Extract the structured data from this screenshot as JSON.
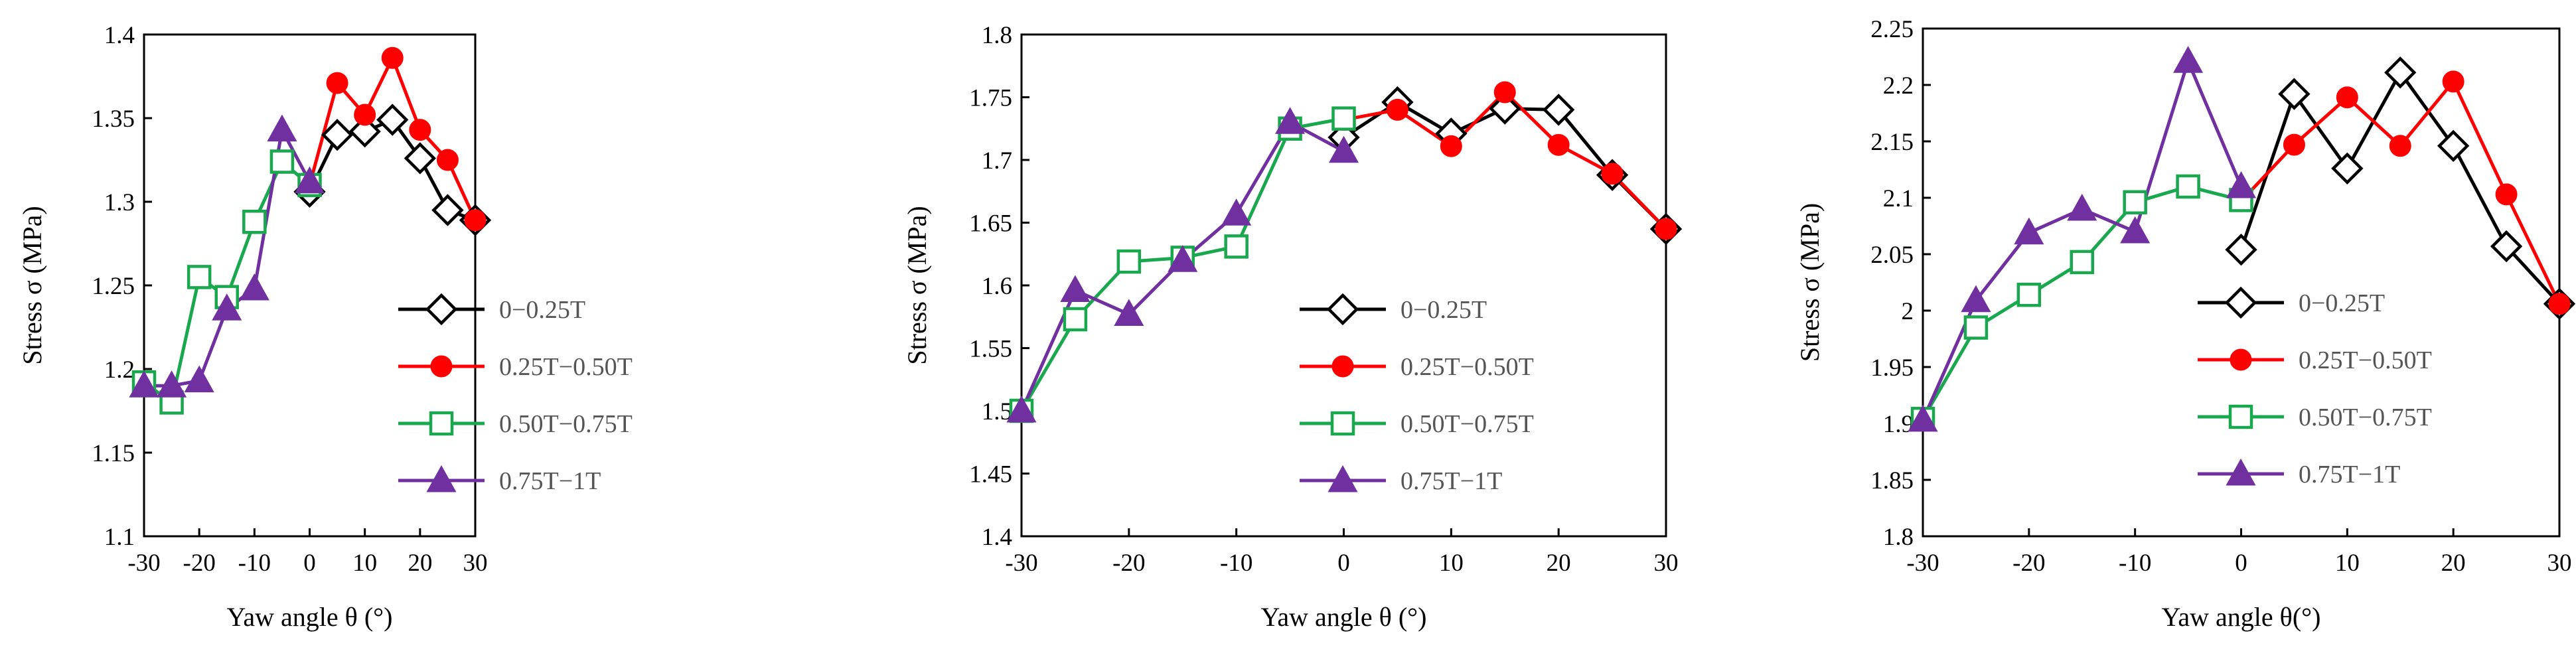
{
  "colors": {
    "s1": "#000000",
    "s2": "#ff0000",
    "s3": "#1aa84f",
    "s4": "#7030a0"
  },
  "chart_data": [
    {
      "type": "line",
      "xlabel": "Yaw angle θ (°)",
      "ylabel": "Stress σ (MPa)",
      "xlim": [
        -30,
        30
      ],
      "ylim": [
        1.1,
        1.4
      ],
      "xticks": [
        -30,
        -20,
        -10,
        0,
        10,
        20,
        30
      ],
      "xtick_labels": [
        "-30",
        "-20",
        "-10",
        "0",
        "10",
        "20",
        "30"
      ],
      "yticks": [
        1.1,
        1.15,
        1.2,
        1.25,
        1.3,
        1.35,
        1.4
      ],
      "ytick_labels": [
        "1.1",
        "1.15",
        "1.2",
        "1.25",
        "1.3",
        "1.35",
        "1.4"
      ],
      "legend_position": "right",
      "series": [
        {
          "name": "0−0.25T",
          "marker": "diamond",
          "x": [
            0,
            5,
            10,
            15,
            20,
            25,
            30
          ],
          "values": [
            1.306,
            1.34,
            1.342,
            1.349,
            1.326,
            1.295,
            1.289
          ]
        },
        {
          "name": "0.25T−0.50T",
          "marker": "circle",
          "x": [
            0,
            5,
            10,
            15,
            20,
            25,
            30
          ],
          "values": [
            1.31,
            1.371,
            1.352,
            1.386,
            1.343,
            1.325,
            1.289
          ]
        },
        {
          "name": "0.50T−0.75T",
          "marker": "square",
          "x": [
            -30,
            -25,
            -20,
            -15,
            -10,
            -5,
            0
          ],
          "values": [
            1.192,
            1.18,
            1.255,
            1.243,
            1.288,
            1.324,
            1.31
          ]
        },
        {
          "name": "0.75T−1T",
          "marker": "triangle",
          "x": [
            -30,
            -25,
            -20,
            -15,
            -10,
            -5,
            0
          ],
          "values": [
            1.19,
            1.19,
            1.193,
            1.236,
            1.248,
            1.343,
            1.312
          ]
        }
      ]
    },
    {
      "type": "line",
      "xlabel": "Yaw angle θ (°)",
      "ylabel": "Stress σ (MPa)",
      "xlim": [
        -30,
        30
      ],
      "ylim": [
        1.4,
        1.8
      ],
      "xticks": [
        -30,
        -20,
        -10,
        0,
        10,
        20,
        30
      ],
      "xtick_labels": [
        "-30",
        "-20",
        "-10",
        "0",
        "10",
        "20",
        "30"
      ],
      "yticks": [
        1.4,
        1.45,
        1.5,
        1.55,
        1.6,
        1.65,
        1.7,
        1.75,
        1.8
      ],
      "ytick_labels": [
        "1.4",
        "1.45",
        "1.5",
        "1.55",
        "1.6",
        "1.65",
        "1.7",
        "1.75",
        "1.8"
      ],
      "legend_position": "right",
      "series": [
        {
          "name": "0−0.25T",
          "marker": "diamond",
          "x": [
            0,
            5,
            10,
            15,
            20,
            25,
            30
          ],
          "values": [
            1.718,
            1.746,
            1.721,
            1.741,
            1.74,
            1.688,
            1.645
          ]
        },
        {
          "name": "0.25T−0.50T",
          "marker": "circle",
          "x": [
            0,
            5,
            10,
            15,
            20,
            25,
            30
          ],
          "values": [
            1.732,
            1.74,
            1.711,
            1.754,
            1.712,
            1.689,
            1.645
          ]
        },
        {
          "name": "0.50T−0.75T",
          "marker": "square",
          "x": [
            -30,
            -25,
            -20,
            -15,
            -10,
            -5,
            0
          ],
          "values": [
            1.5,
            1.573,
            1.619,
            1.622,
            1.631,
            1.725,
            1.733
          ]
        },
        {
          "name": "0.75T−1T",
          "marker": "triangle",
          "x": [
            -30,
            -25,
            -20,
            -15,
            -10,
            -5,
            0
          ],
          "values": [
            1.5,
            1.596,
            1.577,
            1.62,
            1.657,
            1.73,
            1.707
          ]
        }
      ]
    },
    {
      "type": "line",
      "xlabel": "Yaw angle θ(°)",
      "ylabel": "Stress σ (MPa)",
      "xlim": [
        -30,
        30
      ],
      "ylim": [
        1.8,
        2.25
      ],
      "xticks": [
        -30,
        -20,
        -10,
        0,
        10,
        20,
        30
      ],
      "xtick_labels": [
        "-30",
        "-20",
        "-10",
        "0",
        "10",
        "20",
        "30"
      ],
      "yticks": [
        1.8,
        1.85,
        1.9,
        1.95,
        2.0,
        2.05,
        2.1,
        2.15,
        2.2,
        2.25
      ],
      "ytick_labels": [
        "1.8",
        "1.85",
        "1.9",
        "1.95",
        "2",
        "2.05",
        "2.1",
        "2.15",
        "2.2",
        "2.25"
      ],
      "legend_position": "right",
      "series": [
        {
          "name": "0−0.25T",
          "marker": "diamond",
          "x": [
            0,
            5,
            10,
            15,
            20,
            25,
            30
          ],
          "values": [
            2.054,
            2.192,
            2.126,
            2.211,
            2.146,
            2.057,
            2.006
          ]
        },
        {
          "name": "0.25T−0.50T",
          "marker": "circle",
          "x": [
            0,
            5,
            10,
            15,
            20,
            25,
            30
          ],
          "values": [
            2.097,
            2.147,
            2.189,
            2.146,
            2.203,
            2.103,
            2.006
          ]
        },
        {
          "name": "0.50T−0.75T",
          "marker": "square",
          "x": [
            -30,
            -25,
            -20,
            -15,
            -10,
            -5,
            0
          ],
          "values": [
            1.904,
            1.985,
            2.014,
            2.043,
            2.096,
            2.11,
            2.098
          ]
        },
        {
          "name": "0.75T−1T",
          "marker": "triangle",
          "x": [
            -30,
            -25,
            -20,
            -15,
            -10,
            -5,
            0
          ],
          "values": [
            1.903,
            2.009,
            2.069,
            2.09,
            2.07,
            2.221,
            2.11
          ]
        }
      ]
    }
  ]
}
